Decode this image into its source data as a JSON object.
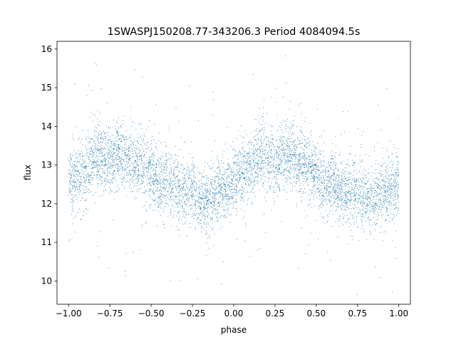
{
  "chart_data": {
    "type": "scatter",
    "title": "1SWASPJ150208.77-343206.3 Period 4084094.5s",
    "xlabel": "phase",
    "ylabel": "flux",
    "xlim": [
      -1.07,
      1.07
    ],
    "ylim": [
      9.4,
      16.2
    ],
    "x_ticks": [
      -1.0,
      -0.75,
      -0.5,
      -0.25,
      0.0,
      0.25,
      0.5,
      0.75,
      1.0
    ],
    "x_tick_labels": [
      "−1.00",
      "−0.75",
      "−0.50",
      "−0.25",
      "0.00",
      "0.25",
      "0.50",
      "0.75",
      "1.00"
    ],
    "y_ticks": [
      10,
      11,
      12,
      13,
      14,
      15,
      16
    ],
    "y_tick_labels": [
      "10",
      "11",
      "12",
      "13",
      "14",
      "15",
      "16"
    ],
    "grid": false,
    "marker_color": "#1f77b4",
    "series": [
      {
        "folded_phase_range": [
          -1.0,
          1.0
        ],
        "points": [
          [
            -1.0,
            12.8
          ],
          [
            -0.97,
            12.6
          ],
          [
            -0.94,
            12.9
          ],
          [
            -0.9,
            12.7
          ],
          [
            -0.85,
            13.3
          ],
          [
            -0.8,
            13.2
          ],
          [
            -0.75,
            13.1
          ],
          [
            -0.7,
            13.3
          ],
          [
            -0.65,
            13.2
          ],
          [
            -0.6,
            13.0
          ],
          [
            -0.55,
            13.0
          ],
          [
            -0.5,
            12.8
          ],
          [
            -0.45,
            12.5
          ],
          [
            -0.4,
            12.6
          ],
          [
            -0.35,
            12.4
          ],
          [
            -0.3,
            12.3
          ],
          [
            -0.25,
            12.3
          ],
          [
            -0.2,
            12.1
          ],
          [
            -0.15,
            12.1
          ],
          [
            -0.1,
            12.3
          ],
          [
            -0.05,
            12.4
          ],
          [
            0.0,
            12.6
          ],
          [
            0.05,
            12.8
          ],
          [
            0.1,
            12.9
          ],
          [
            0.15,
            13.3
          ],
          [
            0.2,
            13.2
          ],
          [
            0.25,
            13.1
          ],
          [
            0.3,
            13.3
          ],
          [
            0.35,
            13.2
          ],
          [
            0.4,
            13.0
          ],
          [
            0.45,
            13.0
          ],
          [
            0.5,
            12.8
          ],
          [
            0.55,
            12.5
          ],
          [
            0.6,
            12.6
          ],
          [
            0.65,
            12.4
          ],
          [
            0.7,
            12.3
          ],
          [
            0.75,
            12.3
          ],
          [
            0.8,
            12.1
          ],
          [
            0.85,
            12.1
          ],
          [
            0.9,
            12.3
          ],
          [
            0.95,
            12.4
          ],
          [
            1.0,
            12.6
          ]
        ]
      }
    ]
  }
}
